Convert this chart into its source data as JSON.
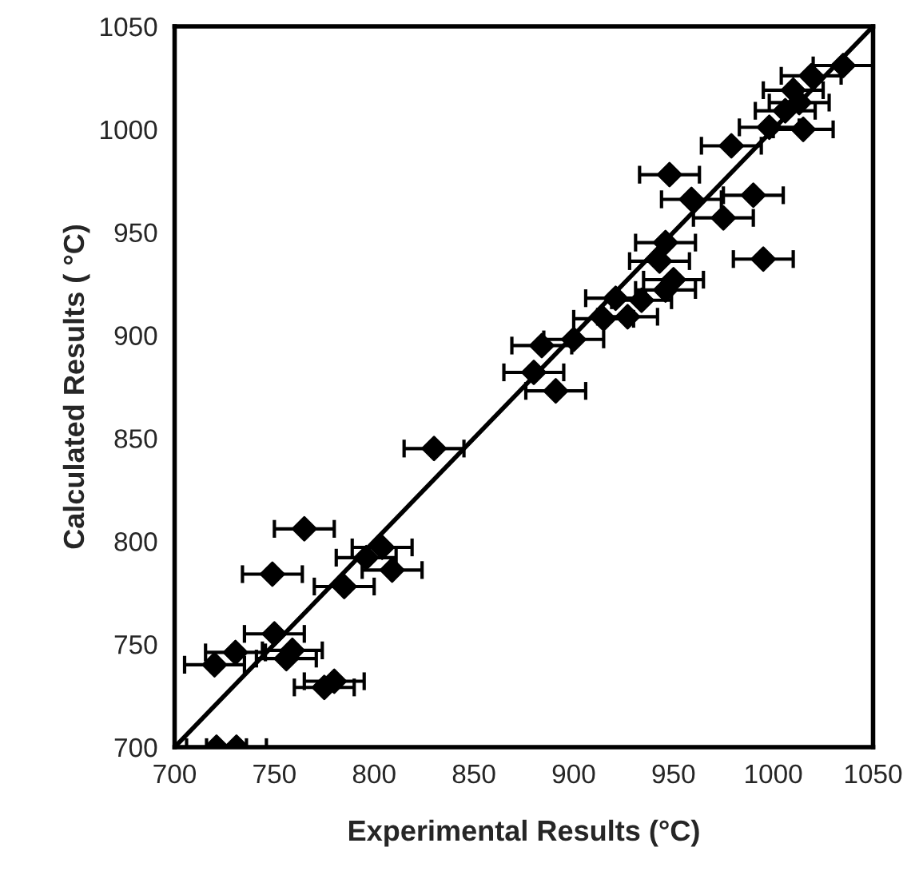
{
  "chart_data": {
    "type": "scatter",
    "xlabel": "Experimental Results (°C)",
    "ylabel": "Calculated Results ( °C)",
    "xlim": [
      700,
      1050
    ],
    "ylim": [
      700,
      1050
    ],
    "xticks": [
      700,
      750,
      800,
      850,
      900,
      950,
      1000,
      1050
    ],
    "yticks": [
      700,
      750,
      800,
      850,
      900,
      950,
      1000,
      1050
    ],
    "grid": false,
    "legend": false,
    "marker": "diamond",
    "series": [
      {
        "color": "#000000",
        "x": [
          721,
          731,
          720,
          730.5,
          756,
          759,
          750,
          775,
          780,
          749,
          765,
          785,
          809,
          796,
          804,
          830,
          880,
          884,
          891,
          900,
          915,
          927,
          921,
          934,
          946,
          950,
          943,
          946,
          948,
          959,
          975,
          990,
          995,
          979,
          998,
          1015,
          1006,
          1013,
          1010,
          1019,
          1035
        ],
        "values": [
          700,
          700,
          740,
          746,
          743,
          747,
          755,
          729,
          732,
          784,
          806,
          778,
          786,
          792,
          797,
          845,
          882,
          895,
          873,
          898,
          908,
          909,
          918,
          917,
          922,
          927,
          936,
          945,
          978,
          966,
          957,
          968,
          937,
          992,
          1001,
          1000,
          1009,
          1013,
          1019,
          1026,
          1031
        ],
        "xerrors": [
          15,
          15,
          15,
          15,
          15,
          15,
          15,
          15,
          15,
          15,
          15,
          15,
          15,
          15,
          15,
          15,
          15,
          15,
          15,
          15,
          15,
          15,
          15,
          15,
          15,
          15,
          15,
          15,
          15,
          15,
          15,
          15,
          15,
          15,
          15,
          15,
          15,
          15,
          15,
          15,
          15
        ]
      },
      {
        "type": "line",
        "color": "#000000",
        "x": [
          700,
          1050
        ],
        "values": [
          700,
          1050
        ],
        "marker": "none",
        "line_style": "solid"
      }
    ]
  }
}
